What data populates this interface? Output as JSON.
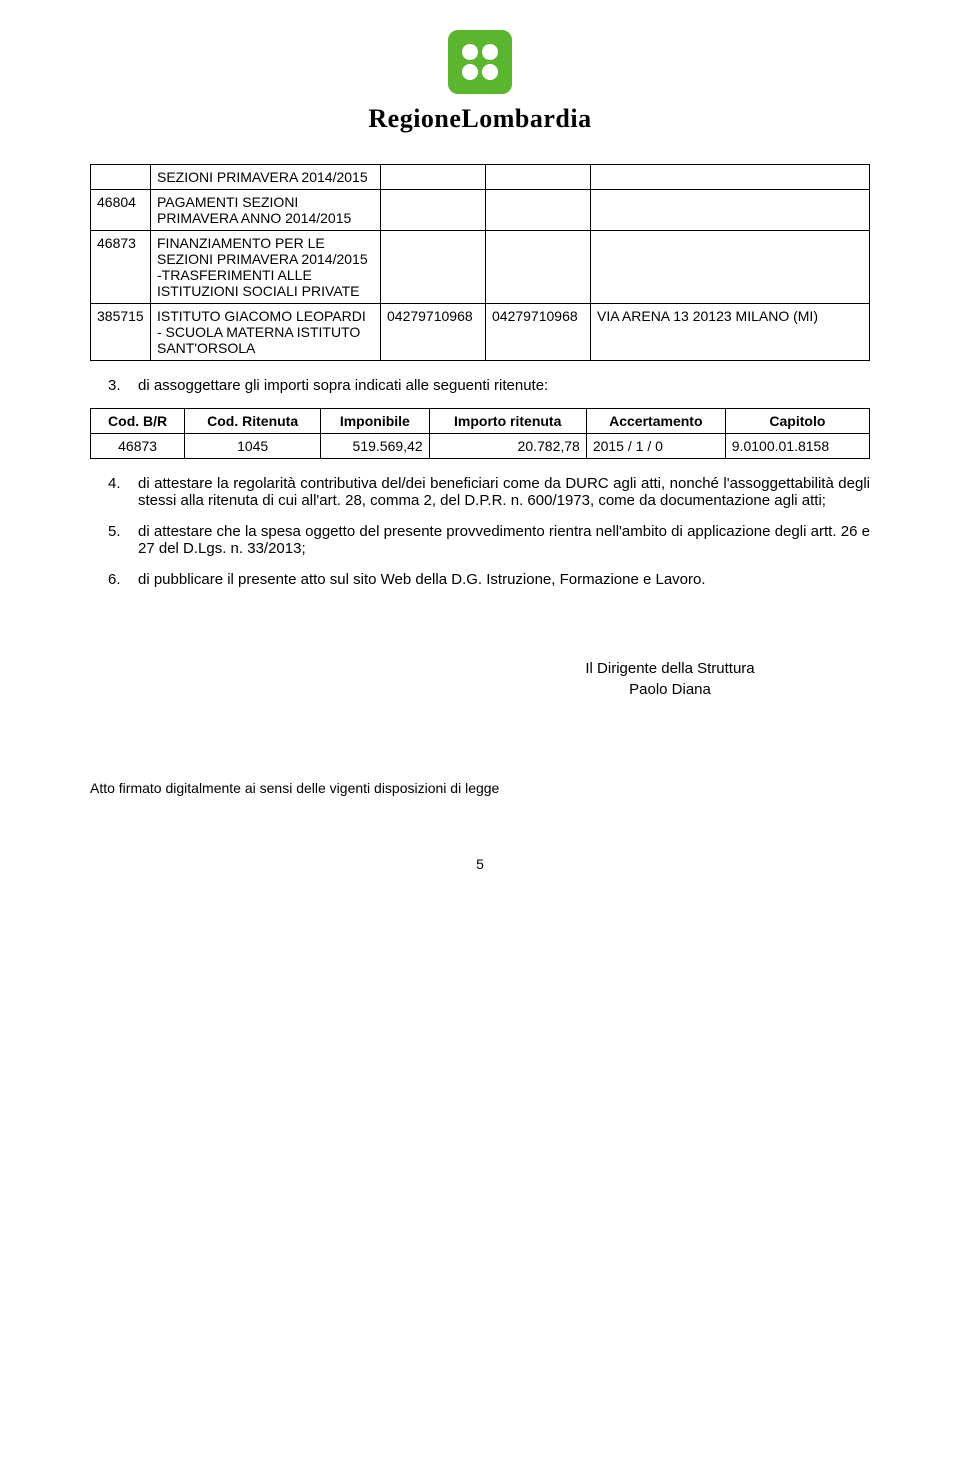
{
  "logo": {
    "text": "RegioneLombardia"
  },
  "table1": {
    "rows": [
      {
        "c1": "",
        "c2": "SEZIONI PRIMAVERA 2014/2015",
        "c3": "",
        "c4": "",
        "c5": ""
      },
      {
        "c1": "46804",
        "c2": "PAGAMENTI SEZIONI PRIMAVERA ANNO 2014/2015",
        "c3": "",
        "c4": "",
        "c5": ""
      },
      {
        "c1": "46873",
        "c2": "FINANZIAMENTO PER LE SEZIONI PRIMAVERA 2014/2015 -TRASFERIMENTI ALLE ISTITUZIONI SOCIALI PRIVATE",
        "c3": "",
        "c4": "",
        "c5": ""
      },
      {
        "c1": "385715",
        "c2": "ISTITUTO GIACOMO LEOPARDI - SCUOLA MATERNA ISTITUTO SANT'ORSOLA",
        "c3": "04279710968",
        "c4": "04279710968",
        "c5": "VIA ARENA 13 20123 MILANO (MI)"
      }
    ]
  },
  "list3": {
    "text": "di assoggettare gli importi sopra indicati alle seguenti ritenute:"
  },
  "table2": {
    "headers": {
      "h1": "Cod. B/R",
      "h2": "Cod. Ritenuta",
      "h3": "Imponibile",
      "h4": "Importo ritenuta",
      "h5": "Accertamento",
      "h6": "Capitolo"
    },
    "row": {
      "c1": "46873",
      "c2": "1045",
      "c3": "519.569,42",
      "c4": "20.782,78",
      "c5": "2015 / 1 / 0",
      "c6": "9.0100.01.8158"
    }
  },
  "list": {
    "i4": "di attestare la regolarità contributiva del/dei beneficiari come da DURC agli atti, nonché l'assoggettabilità degli stessi alla ritenuta di cui all'art. 28, comma 2, del D.P.R. n. 600/1973, come da documentazione agli atti;",
    "i5": "di attestare che la spesa oggetto del presente provvedimento rientra nell'ambito di applicazione degli artt. 26 e 27 del D.Lgs. n. 33/2013;",
    "i6": "di pubblicare il presente atto sul sito Web della D.G. Istruzione, Formazione e Lavoro."
  },
  "signature": {
    "line1": "Il Dirigente della Struttura",
    "line2": "Paolo Diana"
  },
  "footer": "Atto firmato digitalmente ai sensi delle vigenti disposizioni di legge",
  "pageNumber": "5"
}
